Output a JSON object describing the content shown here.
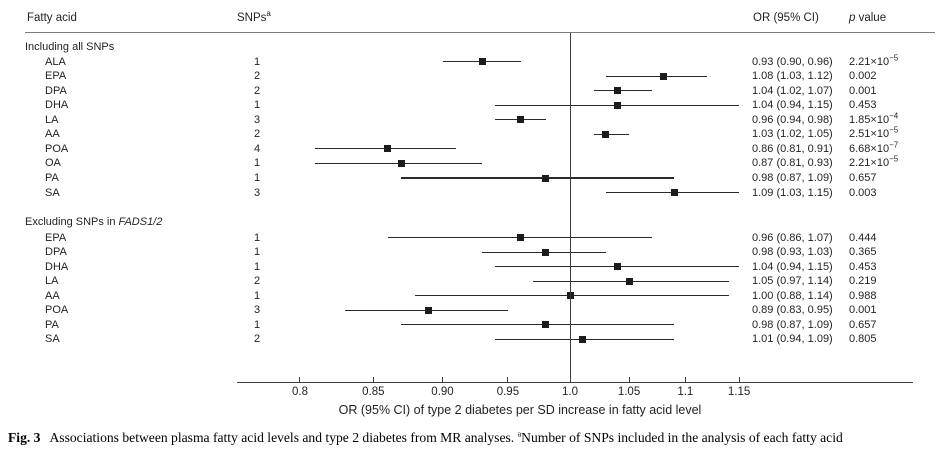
{
  "header": {
    "fatty_acid": "Fatty acid",
    "snps": "SNPs",
    "snps_sup": "a",
    "or_ci": "OR (95% CI)",
    "p_italic": "p",
    "p_rest": " value"
  },
  "axis": {
    "label": "OR (95% CI) of type 2 diabetes per SD increase in fatty acid level"
  },
  "caption": {
    "fig": "Fig. 3",
    "text": "Associations between plasma fatty acid levels and type 2 diabetes from MR analyses. ",
    "sup": "a",
    "note": "Number of SNPs included in the analysis of each fatty acid"
  },
  "chart_data": {
    "type": "scatter",
    "subtype": "forest-plot",
    "title": "",
    "xlabel": "OR (95% CI) of type 2 diabetes per SD increase in fatty acid level",
    "x_scale": "log",
    "xlim": [
      0.77,
      1.33
    ],
    "x_ticks": [
      0.8,
      0.85,
      0.9,
      0.95,
      1.0,
      1.05,
      1.1,
      1.15
    ],
    "x_tick_labels": [
      "0.8",
      "0.85",
      "0.90",
      "0.95",
      "1.0",
      "1.05",
      "1.1",
      "1.15"
    ],
    "reference_line_x": 1.0,
    "grid": false,
    "legend": "none",
    "sections": [
      {
        "label_prefix": "Including all SNPs",
        "label_italic": "",
        "rows": [
          {
            "name": "ALA",
            "snps": "1",
            "or": 0.93,
            "ci_low": 0.9,
            "ci_high": 0.96,
            "or_ci": "0.93 (0.90, 0.96)",
            "p_base": "2.21×10",
            "p_exp": "−5"
          },
          {
            "name": "EPA",
            "snps": "2",
            "or": 1.08,
            "ci_low": 1.03,
            "ci_high": 1.12,
            "or_ci": "1.08 (1.03, 1.12)",
            "p_base": "0.002",
            "p_exp": ""
          },
          {
            "name": "DPA",
            "snps": "2",
            "or": 1.04,
            "ci_low": 1.02,
            "ci_high": 1.07,
            "or_ci": "1.04 (1.02, 1.07)",
            "p_base": "0.001",
            "p_exp": ""
          },
          {
            "name": "DHA",
            "snps": "1",
            "or": 1.04,
            "ci_low": 0.94,
            "ci_high": 1.15,
            "or_ci": "1.04 (0.94, 1.15)",
            "p_base": "0.453",
            "p_exp": ""
          },
          {
            "name": "LA",
            "snps": "3",
            "or": 0.96,
            "ci_low": 0.94,
            "ci_high": 0.98,
            "or_ci": "0.96 (0.94, 0.98)",
            "p_base": "1.85×10",
            "p_exp": "−4"
          },
          {
            "name": "AA",
            "snps": "2",
            "or": 1.03,
            "ci_low": 1.02,
            "ci_high": 1.05,
            "or_ci": "1.03 (1.02, 1.05)",
            "p_base": "2.51×10",
            "p_exp": "−5"
          },
          {
            "name": "POA",
            "snps": "4",
            "or": 0.86,
            "ci_low": 0.81,
            "ci_high": 0.91,
            "or_ci": "0.86 (0.81, 0.91)",
            "p_base": "6.68×10",
            "p_exp": "−7"
          },
          {
            "name": "OA",
            "snps": "1",
            "or": 0.87,
            "ci_low": 0.81,
            "ci_high": 0.93,
            "or_ci": "0.87 (0.81, 0.93)",
            "p_base": "2.21×10",
            "p_exp": "−5"
          },
          {
            "name": "PA",
            "snps": "1",
            "or": 0.98,
            "ci_low": 0.87,
            "ci_high": 1.09,
            "or_ci": "0.98 (0.87, 1.09)",
            "p_base": "0.657",
            "p_exp": ""
          },
          {
            "name": "SA",
            "snps": "3",
            "or": 1.09,
            "ci_low": 1.03,
            "ci_high": 1.15,
            "or_ci": "1.09 (1.03, 1.15)",
            "p_base": "0.003",
            "p_exp": ""
          }
        ]
      },
      {
        "label_prefix": "Excluding SNPs in ",
        "label_italic": "FADS1/2",
        "rows": [
          {
            "name": "EPA",
            "snps": "1",
            "or": 0.96,
            "ci_low": 0.86,
            "ci_high": 1.07,
            "or_ci": "0.96 (0.86, 1.07)",
            "p_base": "0.444",
            "p_exp": ""
          },
          {
            "name": "DPA",
            "snps": "1",
            "or": 0.98,
            "ci_low": 0.93,
            "ci_high": 1.03,
            "or_ci": "0.98 (0.93, 1.03)",
            "p_base": "0.365",
            "p_exp": ""
          },
          {
            "name": "DHA",
            "snps": "1",
            "or": 1.04,
            "ci_low": 0.94,
            "ci_high": 1.15,
            "or_ci": "1.04 (0.94, 1.15)",
            "p_base": "0.453",
            "p_exp": ""
          },
          {
            "name": "LA",
            "snps": "2",
            "or": 1.05,
            "ci_low": 0.97,
            "ci_high": 1.14,
            "or_ci": "1.05 (0.97, 1.14)",
            "p_base": "0.219",
            "p_exp": ""
          },
          {
            "name": "AA",
            "snps": "1",
            "or": 1.0,
            "ci_low": 0.88,
            "ci_high": 1.14,
            "or_ci": "1.00 (0.88, 1.14)",
            "p_base": "0.988",
            "p_exp": ""
          },
          {
            "name": "POA",
            "snps": "3",
            "or": 0.89,
            "ci_low": 0.83,
            "ci_high": 0.95,
            "or_ci": "0.89 (0.83, 0.95)",
            "p_base": "0.001",
            "p_exp": ""
          },
          {
            "name": "PA",
            "snps": "1",
            "or": 0.98,
            "ci_low": 0.87,
            "ci_high": 1.09,
            "or_ci": "0.98 (0.87, 1.09)",
            "p_base": "0.657",
            "p_exp": ""
          },
          {
            "name": "SA",
            "snps": "2",
            "or": 1.01,
            "ci_low": 0.94,
            "ci_high": 1.09,
            "or_ci": "1.01 (0.94, 1.09)",
            "p_base": "0.805",
            "p_exp": ""
          }
        ]
      }
    ]
  }
}
